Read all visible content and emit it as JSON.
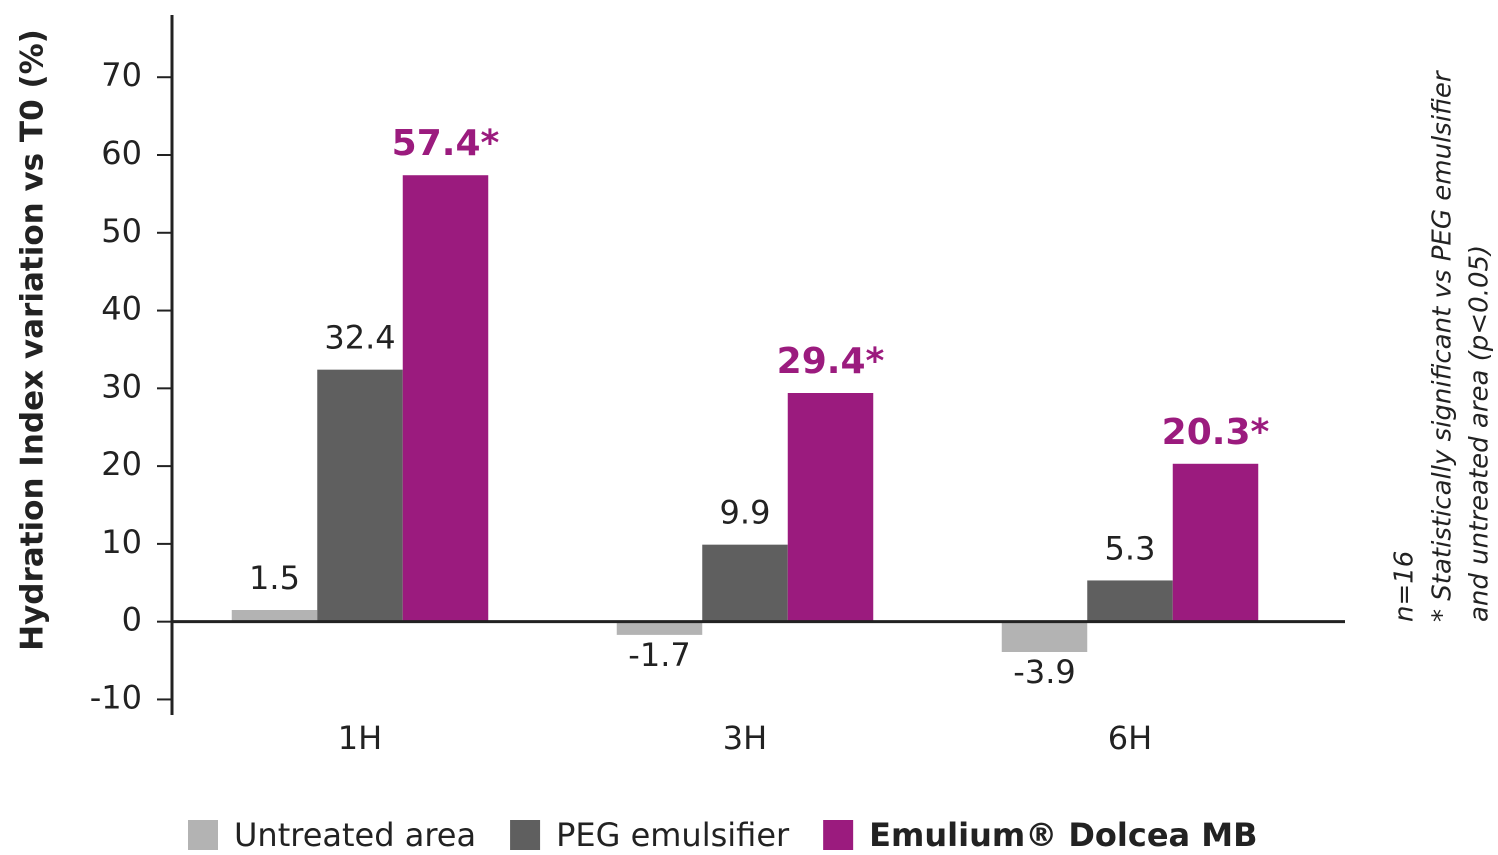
{
  "chart_data": {
    "type": "bar",
    "y_label": "Hydration Index  variation vs T0 (%)",
    "categories": [
      "1H",
      "3H",
      "6H"
    ],
    "series": [
      {
        "name": "Untreated area",
        "color": "#b3b3b3",
        "values": [
          1.5,
          -1.7,
          -3.9
        ]
      },
      {
        "name": "PEG emulsifier",
        "color": "#5f5f5f",
        "values": [
          32.4,
          9.9,
          5.3
        ]
      },
      {
        "name": "Emulium® Dolcea MB",
        "color": "#9b1b7e",
        "values": [
          57.4,
          29.4,
          20.3
        ],
        "value_labels": [
          "57.4*",
          "29.4*",
          "20.3*"
        ]
      }
    ],
    "ylim": [
      -12,
      78
    ],
    "yticks": [
      -10,
      0,
      10,
      20,
      30,
      40,
      50,
      60,
      70
    ],
    "annotations": [
      "n=16",
      "* Statistically significant vs PEG emulsifier",
      "and untreated area (p<0.05)"
    ]
  }
}
